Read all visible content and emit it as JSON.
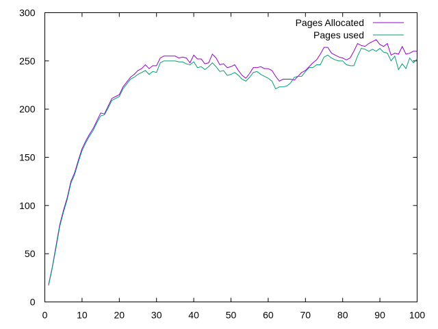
{
  "chart_data": {
    "type": "line",
    "xlim": [
      0,
      100
    ],
    "ylim": [
      0,
      300
    ],
    "xticks": [
      0,
      10,
      20,
      30,
      40,
      50,
      60,
      70,
      80,
      90,
      100
    ],
    "yticks": [
      0,
      50,
      100,
      150,
      200,
      250,
      300
    ],
    "grid": false,
    "legend_position": "top-right",
    "series": [
      {
        "name": "Pages Allocated",
        "color": "#9400d3",
        "x": [
          1,
          2,
          3,
          4,
          5,
          6,
          7,
          8,
          9,
          10,
          11,
          12,
          13,
          14,
          15,
          16,
          17,
          18,
          19,
          20,
          21,
          22,
          23,
          24,
          25,
          26,
          27,
          28,
          29,
          30,
          31,
          32,
          33,
          34,
          35,
          36,
          37,
          38,
          39,
          40,
          41,
          42,
          43,
          44,
          45,
          46,
          47,
          48,
          49,
          50,
          51,
          52,
          53,
          54,
          55,
          56,
          57,
          58,
          59,
          60,
          61,
          62,
          63,
          64,
          65,
          66,
          67,
          68,
          69,
          70,
          71,
          72,
          73,
          74,
          75,
          76,
          77,
          78,
          79,
          80,
          81,
          82,
          83,
          84,
          85,
          86,
          87,
          88,
          89,
          90,
          91,
          92,
          93,
          94,
          95,
          96,
          97,
          98,
          99,
          100
        ],
        "values": [
          18,
          36,
          58,
          80,
          95,
          108,
          125,
          134,
          147,
          159,
          167,
          174,
          180,
          188,
          196,
          195,
          203,
          211,
          213,
          215,
          223,
          228,
          233,
          236,
          240,
          242,
          246,
          242,
          245,
          245,
          253,
          255,
          255,
          255,
          255,
          253,
          254,
          253,
          248,
          256,
          252,
          252,
          247,
          248,
          257,
          253,
          246,
          247,
          243,
          244,
          246,
          240,
          235,
          232,
          237,
          243,
          243,
          244,
          242,
          242,
          240,
          234,
          229,
          231,
          231,
          231,
          230,
          234,
          238,
          240,
          244,
          248,
          251,
          257,
          264,
          264,
          258,
          256,
          254,
          253,
          251,
          253,
          260,
          268,
          266,
          265,
          268,
          270,
          272,
          267,
          265,
          268,
          256,
          258,
          257,
          265,
          257,
          258,
          260,
          260
        ]
      },
      {
        "name": "Pages used",
        "color": "#009e73",
        "x": [
          1,
          2,
          3,
          4,
          5,
          6,
          7,
          8,
          9,
          10,
          11,
          12,
          13,
          14,
          15,
          16,
          17,
          18,
          19,
          20,
          21,
          22,
          23,
          24,
          25,
          26,
          27,
          28,
          29,
          30,
          31,
          32,
          33,
          34,
          35,
          36,
          37,
          38,
          39,
          40,
          41,
          42,
          43,
          44,
          45,
          46,
          47,
          48,
          49,
          50,
          51,
          52,
          53,
          54,
          55,
          56,
          57,
          58,
          59,
          60,
          61,
          62,
          63,
          64,
          65,
          66,
          67,
          68,
          69,
          70,
          71,
          72,
          73,
          74,
          75,
          76,
          77,
          78,
          79,
          80,
          81,
          82,
          83,
          84,
          85,
          86,
          87,
          88,
          89,
          90,
          91,
          92,
          93,
          94,
          95,
          96,
          97,
          98,
          99,
          100
        ],
        "values": [
          17,
          35,
          56,
          78,
          93,
          106,
          123,
          132,
          145,
          157,
          165,
          172,
          178,
          186,
          193,
          194,
          201,
          209,
          211,
          213,
          221,
          226,
          231,
          233,
          236,
          238,
          240,
          236,
          239,
          238,
          248,
          250,
          250,
          250,
          250,
          249,
          249,
          247,
          246,
          249,
          243,
          244,
          241,
          244,
          248,
          244,
          239,
          240,
          235,
          236,
          238,
          235,
          231,
          229,
          233,
          238,
          239,
          236,
          234,
          232,
          229,
          221,
          223,
          223,
          224,
          227,
          233,
          234,
          234,
          239,
          243,
          243,
          246,
          246,
          254,
          256,
          253,
          251,
          250,
          250,
          246,
          245,
          245,
          255,
          263,
          262,
          260,
          262,
          260,
          263,
          259,
          258,
          250,
          255,
          241,
          247,
          242,
          253,
          248,
          252
        ]
      }
    ]
  }
}
